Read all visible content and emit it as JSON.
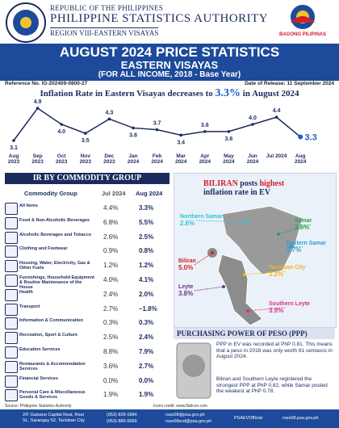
{
  "header": {
    "republic": "REPUBLIC OF THE PHILIPPINES",
    "agency": "PHILIPPINE STATISTICS AUTHORITY",
    "region": "REGION VIII-EASTERN VISAYAS",
    "brand": "BAGONG PILIPINAS"
  },
  "banner": {
    "title": "AUGUST 2024 PRICE STATISTICS",
    "subtitle": "EASTERN VISAYAS",
    "base": "(FOR ALL INCOME, 2018 - Base Year)"
  },
  "reference": "Reference No. IG-202409-0800-27",
  "release_date": "Date of Release: 11 September 2024",
  "chart_data": {
    "type": "line",
    "title": "Inflation Rate in Eastern Visayas decreases to",
    "title_highlight": "3.3%",
    "title_end": "in August 2024",
    "categories": [
      "Aug 2023",
      "Sep 2023",
      "Oct 2023",
      "Nov 2023",
      "Dec 2023",
      "Jan 2024",
      "Feb 2024",
      "Mar 2024",
      "Apr 2024",
      "May 2024",
      "Jun 2024",
      "Jul 2024",
      "Aug 2024"
    ],
    "values": [
      3.1,
      4.9,
      4.0,
      3.5,
      4.3,
      3.8,
      3.7,
      3.4,
      3.6,
      3.6,
      4.0,
      4.4,
      3.3
    ],
    "value_labels": [
      "3.1",
      "4.9",
      "4.0",
      "3.5",
      "4.3",
      "3.8",
      "3.7",
      "3.4",
      "3.6",
      "3.6",
      "4.0",
      "4.4",
      "3.3"
    ],
    "color": "#1b2b5e",
    "highlight_color": "#1d5fc4"
  },
  "commodity": {
    "title": "IR BY COMMODITY GROUP",
    "headers": [
      "Commodity Group",
      "Jul 2024",
      "Aug 2024"
    ],
    "rows": [
      [
        "All Items",
        "4.4%",
        "3.3%"
      ],
      [
        "Food & Non-Alcoholic Beverages",
        "6.8%",
        "5.5%"
      ],
      [
        "Alcoholic Beverages and Tobacco",
        "2.6%",
        "2.5%"
      ],
      [
        "Clothing and Footwear",
        "0.9%",
        "0.8%"
      ],
      [
        "Housing, Water, Electricity, Gas & Other Fuels",
        "1.2%",
        "1.2%"
      ],
      [
        "Furnishings, Household Equipment & Routine Maintenance of the House",
        "4.0%",
        "4.1%"
      ],
      [
        "Health",
        "2.4%",
        "2.0%"
      ],
      [
        "Transport",
        "2.7%",
        "–1.8%"
      ],
      [
        "Information & Communication",
        "0.3%",
        "0.3%"
      ],
      [
        "Recreation, Sport & Culture",
        "2.5%",
        "2.4%"
      ],
      [
        "Education Services",
        "8.8%",
        "7.9%"
      ],
      [
        "Restaurants & Accommodation Services",
        "3.6%",
        "2.7%"
      ],
      [
        "Financial Services",
        "0.0%",
        "0.0%"
      ],
      [
        "Personal Care & Miscellaneous Goods & Services",
        "1.9%",
        "1.9%"
      ]
    ]
  },
  "map": {
    "title_a": "BILIRAN",
    "title_b": "posts",
    "title_c": "highest",
    "title_d": "inflation rate in EV",
    "provinces": [
      {
        "name": "Northern Samar",
        "value": "2.6%",
        "color": "#2ec4d6"
      },
      {
        "name": "Samar",
        "value": "2.5%",
        "color": "#1fa64a"
      },
      {
        "name": "Eastern Samar",
        "value": "2.7%",
        "color": "#2a9fd8"
      },
      {
        "name": "Biliran",
        "value": "5.0%",
        "color": "#d0202a"
      },
      {
        "name": "Tacloban City",
        "value": "3.2%",
        "color": "#f2b51c"
      },
      {
        "name": "Leyte",
        "value": "3.8%",
        "color": "#7a2d8c"
      },
      {
        "name": "Southern Leyte",
        "value": "3.9%",
        "color": "#e0308a"
      }
    ]
  },
  "ppp": {
    "title": "PURCHASING POWER OF PESO (PPP)",
    "p1": "PPP in EV was recorded at PhP 0.81. This means that a peso in 2018 was only worth 81 centavos in August 2024.",
    "p2": "Biliran and Southern Leyte registered the strongest PPP at PhP 0.82, while Samar posted the weakest at PhP 0.78."
  },
  "source": "Source: Philippine Statistics Authority",
  "credits": "Icons credit: www.flaticon.com",
  "footer": {
    "address": "2/F Gaisano Capital Real, Real St., Sarangay 52, Tacloban City",
    "phone1": "(053) 839-1884",
    "phone2": "(053) 889-0069",
    "email1": "rsso08@psa.gov.ph",
    "email2": "rsso08scd@psa.gov.ph",
    "facebook": "PSAEVOfficial",
    "website": "rsso08.psa.gov.ph"
  }
}
